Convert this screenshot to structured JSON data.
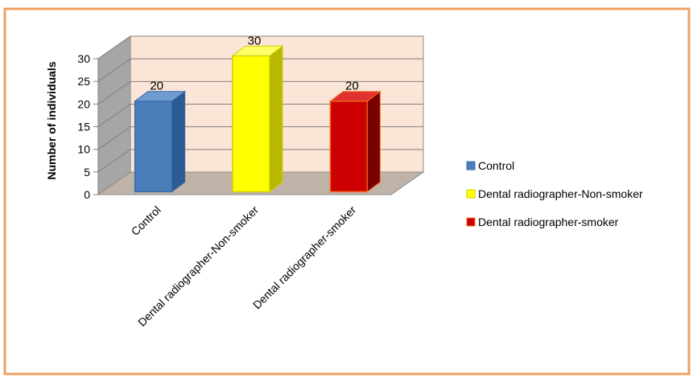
{
  "chart_data": {
    "type": "bar",
    "categories": [
      "Control",
      "Dental radiographer-Non-smoker",
      "Dental radiographer-smoker"
    ],
    "values": [
      20,
      30,
      20
    ],
    "data_labels": [
      "20",
      "30",
      "20"
    ],
    "ylabel": "Number of individuals",
    "ylim": [
      0,
      30
    ],
    "yticks": [
      0,
      5,
      10,
      15,
      20,
      25,
      30
    ],
    "grid": true,
    "legend_position": "right",
    "colors": {
      "frame_border": "#f0a060",
      "back_wall": "#fbe5d6",
      "side_wall": "#a6a6a6",
      "floor": "#bfb3a8",
      "gridline": "#7f7f7f"
    },
    "series": [
      {
        "name": "Control",
        "value": 20,
        "front": "#4a7ebb",
        "side": "#2c5a93",
        "top": "#6f9bd3",
        "edge": "#3a6aa6"
      },
      {
        "name": "Dental radiographer-Non-smoker",
        "value": 30,
        "front": "#ffff00",
        "side": "#b8b800",
        "top": "#ffff66",
        "edge": "#d0d000"
      },
      {
        "name": "Dental radiographer-smoker",
        "value": 20,
        "front": "#cc0000",
        "side": "#7a0000",
        "top": "#e03030",
        "edge": "#f07020"
      }
    ],
    "legend": [
      "Control",
      "Dental radiographer-Non-smoker",
      "Dental radiographer-smoker"
    ]
  }
}
